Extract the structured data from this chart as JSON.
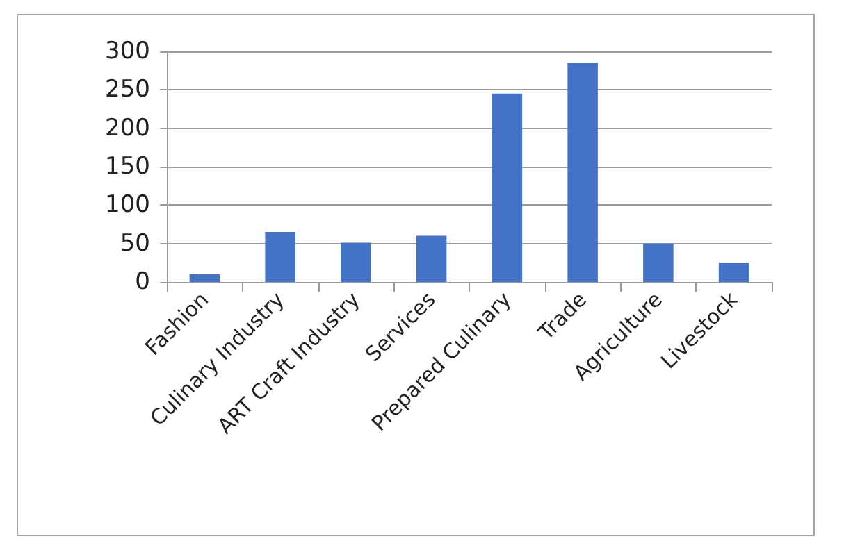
{
  "chart_data": {
    "type": "bar",
    "categories": [
      "Fashion",
      "Culinary Industry",
      "ART Craft Industry",
      "Services",
      "Prepared Culinary",
      "Trade",
      "Agriculture",
      "Livestock"
    ],
    "values": [
      10,
      65,
      51,
      60,
      245,
      285,
      50,
      25
    ],
    "color": "#4472c4",
    "ylim": [
      0,
      300
    ],
    "yticks": [
      0,
      50,
      100,
      150,
      200,
      250,
      300
    ],
    "grid": "y"
  }
}
